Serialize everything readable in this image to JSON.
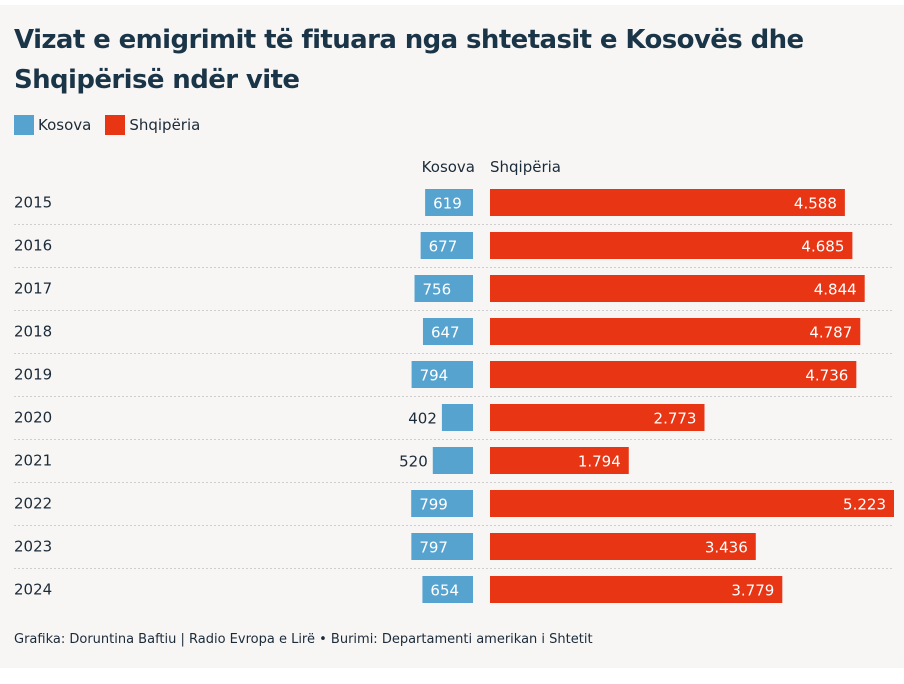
{
  "title": "Vizat e emigrimit të fituara nga shtetasit e Kosovës dhe Shqipërisë ndër vite",
  "legend": [
    {
      "label": "Kosova",
      "color": "#56a3d0"
    },
    {
      "label": "Shqipëria",
      "color": "#e83514"
    }
  ],
  "column_headers": {
    "kosova": "Kosova",
    "shqiperia": "Shqipëria"
  },
  "footer": "Grafika: Doruntina Baftiu | Radio Evropa e Lirë • Burimi: Departamenti amerikan i Shtetit",
  "chart_data": {
    "type": "bar",
    "orientation": "horizontal",
    "title": "Vizat e emigrimit të fituara nga shtetasit e Kosovës dhe Shqipërisë ndër vite",
    "categories": [
      "2015",
      "2016",
      "2017",
      "2018",
      "2019",
      "2020",
      "2021",
      "2022",
      "2023",
      "2024"
    ],
    "series": [
      {
        "name": "Kosova",
        "color": "#56a3d0",
        "values": [
          619,
          677,
          756,
          647,
          794,
          402,
          520,
          799,
          797,
          654
        ],
        "labels": [
          "619",
          "677",
          "756",
          "647",
          "794",
          "402",
          "520",
          "799",
          "797",
          "654"
        ]
      },
      {
        "name": "Shqipëria",
        "color": "#e83514",
        "values": [
          4588,
          4685,
          4844,
          4787,
          4736,
          2773,
          1794,
          5223,
          3436,
          3779
        ],
        "labels": [
          "4.588",
          "4.685",
          "4.844",
          "4.787",
          "4.736",
          "2.773",
          "1.794",
          "5.223",
          "3.436",
          "3.779"
        ]
      }
    ],
    "xlabel": "",
    "ylabel": "",
    "grid": false,
    "legend_position": "top-left",
    "source": "Departamenti amerikan i Shtetit"
  }
}
